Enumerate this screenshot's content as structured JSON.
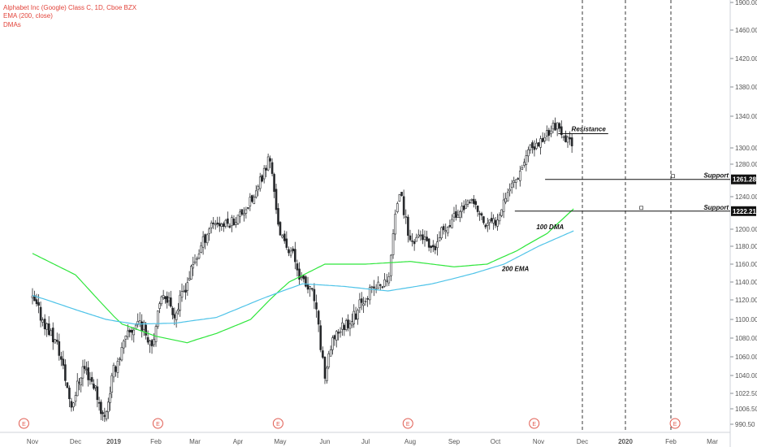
{
  "legend": {
    "title": "Alphabet Inc (Google) Class C, 1D, Cboe BZX",
    "ema": "EMA (200, close)",
    "dmas": "DMAs",
    "color": "#e2433a"
  },
  "colors": {
    "up": "#26282b",
    "down": "#26282b",
    "ema200": "#2ee63b",
    "dma100": "#4ec3e8",
    "axis": "#555555",
    "badge": "#111111",
    "earnings": "#e05a4f"
  },
  "chart_data": {
    "type": "candlestick",
    "title": "Alphabet Inc (Google) Class C, 1D, Cboe BZX",
    "ylim": [
      985,
      1905
    ],
    "y_ticks": [
      1900.0,
      1460.0,
      1420.0,
      1380.0,
      1340.0,
      1300.0,
      1280.0,
      1240.0,
      1200.0,
      1180.0,
      1160.0,
      1140.0,
      1120.0,
      1100.0,
      1080.0,
      1060.0,
      1040.0,
      1022.5,
      1006.5,
      990.5
    ],
    "y_tick_labels": [
      "1900.00",
      "1460.00",
      "1420.00",
      "1380.00",
      "1340.00",
      "1300.00",
      "1280.00",
      "1240.00",
      "1200.00",
      "1180.00",
      "1160.00",
      "1140.00",
      "1120.00",
      "1100.00",
      "1080.00",
      "1060.00",
      "1040.00",
      "1022.50",
      "1006.50",
      "990.50"
    ],
    "x_labels": [
      "Nov",
      "Dec",
      "2019",
      "Feb",
      "Mar",
      "Apr",
      "May",
      "Jun",
      "Jul",
      "Aug",
      "Sep",
      "Oct",
      "Nov",
      "Dec",
      "2020",
      "Feb",
      "Mar"
    ],
    "x_label_months": [
      0,
      1,
      2,
      3,
      4,
      5,
      6,
      7,
      8,
      9,
      10,
      11,
      12,
      13,
      14,
      15,
      16
    ],
    "price_waypoints": [
      [
        0,
        1120
      ],
      [
        0.3,
        1095
      ],
      [
        0.6,
        1070
      ],
      [
        0.9,
        1010
      ],
      [
        1.2,
        1050
      ],
      [
        1.5,
        1030
      ],
      [
        1.75,
        995
      ],
      [
        2.0,
        1045
      ],
      [
        2.3,
        1080
      ],
      [
        2.6,
        1100
      ],
      [
        2.9,
        1075
      ],
      [
        3.2,
        1130
      ],
      [
        3.5,
        1105
      ],
      [
        3.8,
        1140
      ],
      [
        4.1,
        1175
      ],
      [
        4.4,
        1210
      ],
      [
        4.7,
        1205
      ],
      [
        5.0,
        1215
      ],
      [
        5.4,
        1240
      ],
      [
        5.75,
        1290
      ],
      [
        6.0,
        1190
      ],
      [
        6.25,
        1175
      ],
      [
        6.5,
        1140
      ],
      [
        6.75,
        1125
      ],
      [
        7.0,
        1040
      ],
      [
        7.25,
        1085
      ],
      [
        7.5,
        1095
      ],
      [
        7.75,
        1105
      ],
      [
        8.0,
        1125
      ],
      [
        8.25,
        1135
      ],
      [
        8.5,
        1140
      ],
      [
        8.75,
        1250
      ],
      [
        9.0,
        1185
      ],
      [
        9.25,
        1195
      ],
      [
        9.5,
        1170
      ],
      [
        9.75,
        1200
      ],
      [
        10.0,
        1215
      ],
      [
        10.25,
        1230
      ],
      [
        10.5,
        1230
      ],
      [
        10.75,
        1205
      ],
      [
        11.0,
        1210
      ],
      [
        11.25,
        1245
      ],
      [
        11.5,
        1265
      ],
      [
        11.75,
        1295
      ],
      [
        12.0,
        1305
      ],
      [
        12.2,
        1320
      ],
      [
        12.4,
        1330
      ],
      [
        12.55,
        1310
      ],
      [
        12.8,
        1308
      ]
    ],
    "ema200_waypoints": [
      [
        0,
        1172
      ],
      [
        1,
        1148
      ],
      [
        1.6,
        1120
      ],
      [
        2.2,
        1095
      ],
      [
        3.0,
        1082
      ],
      [
        3.8,
        1075
      ],
      [
        4.5,
        1085
      ],
      [
        5.3,
        1100
      ],
      [
        6.2,
        1140
      ],
      [
        7.0,
        1160
      ],
      [
        8.0,
        1160
      ],
      [
        9.0,
        1163
      ],
      [
        10.0,
        1157
      ],
      [
        10.8,
        1160
      ],
      [
        11.5,
        1175
      ],
      [
        12.2,
        1195
      ],
      [
        12.8,
        1225
      ]
    ],
    "dma100_waypoints": [
      [
        0,
        1125
      ],
      [
        1,
        1110
      ],
      [
        1.8,
        1100
      ],
      [
        2.5,
        1095
      ],
      [
        3.5,
        1096
      ],
      [
        4.5,
        1102
      ],
      [
        5.5,
        1120
      ],
      [
        6.5,
        1138
      ],
      [
        7.5,
        1135
      ],
      [
        8.5,
        1130
      ],
      [
        9.5,
        1138
      ],
      [
        10.5,
        1150
      ],
      [
        11.2,
        1160
      ],
      [
        12.0,
        1180
      ],
      [
        12.8,
        1198
      ]
    ],
    "annotations": [
      {
        "text": "Resistance",
        "value": 1318,
        "x_start": 12.45,
        "x_end": 13.6
      },
      {
        "text": "Support",
        "value": 1261.28,
        "x_start": 12.15,
        "x_end": 16.5,
        "badge": "1261.28"
      },
      {
        "text": "Support",
        "value": 1222.21,
        "x_start": 11.45,
        "x_end": 16.5,
        "badge": "1222.21"
      },
      {
        "text": "100 DMA",
        "value": 1203,
        "x": 11.95
      },
      {
        "text": "200 EMA",
        "value": 1155,
        "x": 11.15
      }
    ],
    "vertical_dashed_at_month": [
      13.0,
      14.0,
      15.0
    ],
    "earnings_markers_at_month": [
      -0.2,
      3.05,
      5.95,
      8.95,
      11.9,
      15.1
    ],
    "earnings_label": "E"
  }
}
